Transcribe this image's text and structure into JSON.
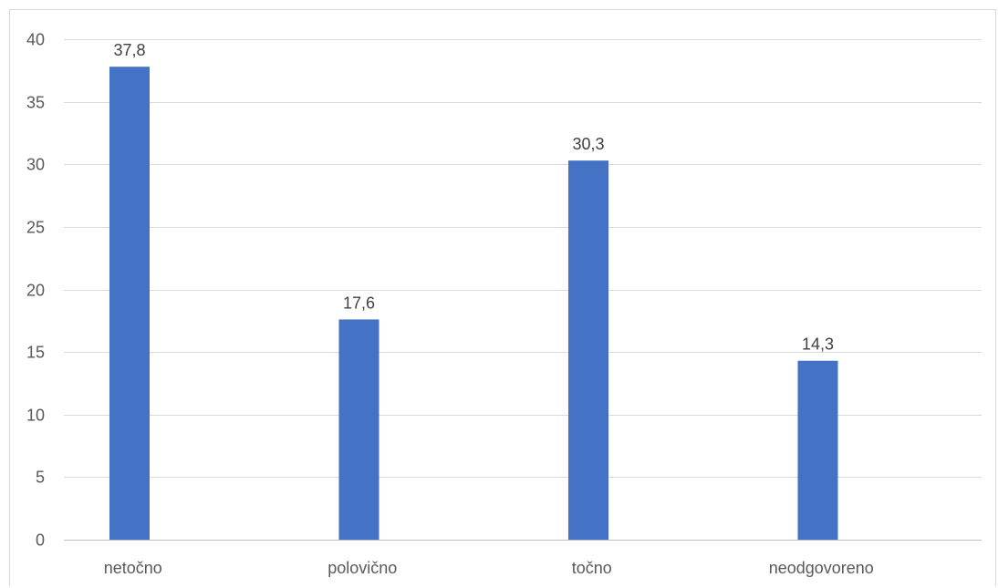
{
  "chart_data": {
    "type": "bar",
    "title": "",
    "xlabel": "",
    "ylabel": "",
    "categories": [
      "netočno",
      "polovično",
      "točno",
      "neodgovoreno"
    ],
    "values": [
      37.8,
      17.6,
      30.3,
      14.3
    ],
    "data_labels": [
      "37,8",
      "17,6",
      "30,3",
      "14,3"
    ],
    "ylim": [
      0,
      40
    ],
    "yticks": [
      0,
      5,
      10,
      15,
      20,
      25,
      30,
      35,
      40
    ],
    "ytick_labels": [
      "0",
      "5",
      "10",
      "15",
      "20",
      "25",
      "30",
      "35",
      "40"
    ],
    "grid": true,
    "legend": "none",
    "colors": {
      "bar": "#4472c4",
      "grid": "#d9d9d9",
      "axis": "#bfbfbf"
    }
  }
}
